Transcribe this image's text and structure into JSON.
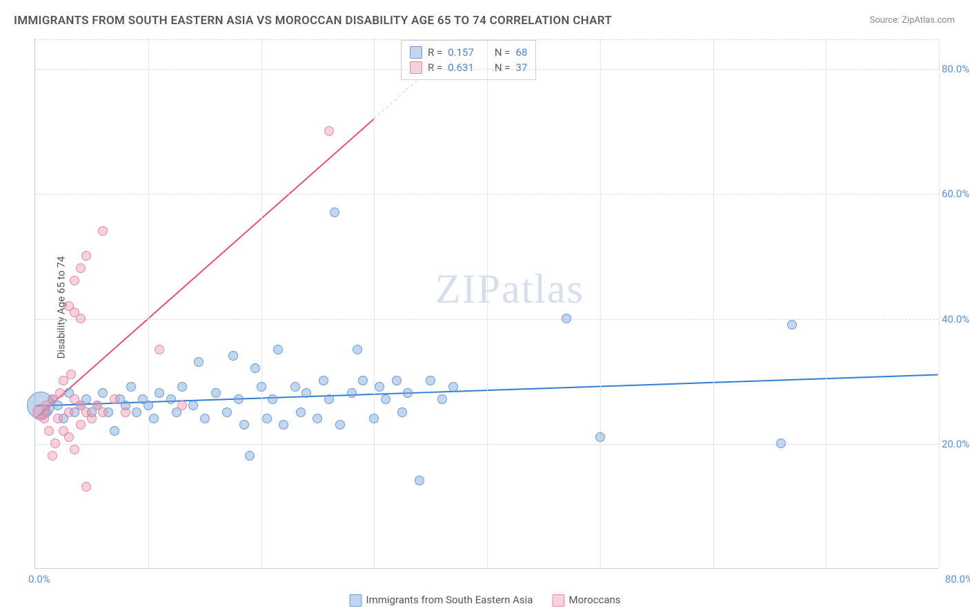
{
  "title": "IMMIGRANTS FROM SOUTH EASTERN ASIA VS MOROCCAN DISABILITY AGE 65 TO 74 CORRELATION CHART",
  "source": "Source: ZipAtlas.com",
  "ylabel": "Disability Age 65 to 74",
  "watermark": "ZIPatlas",
  "chart": {
    "type": "scatter",
    "xlim": [
      0,
      80
    ],
    "ylim": [
      0,
      85
    ],
    "xtick_origin": "0.0%",
    "xtick_max": "80.0%",
    "yticks": [
      {
        "v": 20,
        "label": "20.0%"
      },
      {
        "v": 40,
        "label": "40.0%"
      },
      {
        "v": 60,
        "label": "60.0%"
      },
      {
        "v": 80,
        "label": "80.0%"
      }
    ],
    "grid_x_positions": [
      10,
      20,
      30,
      40,
      50,
      60,
      70,
      80
    ],
    "background_color": "#ffffff",
    "grid_color": "#d8d8d8",
    "series": [
      {
        "name": "Immigrants from South Eastern Asia",
        "color_fill": "rgba(120,165,220,0.45)",
        "color_stroke": "#6a9bd4",
        "line_color": "#2f7fd6",
        "line_width": 2,
        "R": "0.157",
        "N": "68",
        "trend": {
          "x1": 0,
          "y1": 26,
          "x2": 80,
          "y2": 31
        },
        "points": [
          {
            "x": 0.5,
            "y": 26,
            "r": 20
          },
          {
            "x": 1,
            "y": 25,
            "r": 7
          },
          {
            "x": 1.5,
            "y": 27,
            "r": 7
          },
          {
            "x": 2,
            "y": 26,
            "r": 7
          },
          {
            "x": 2.5,
            "y": 24,
            "r": 7
          },
          {
            "x": 3,
            "y": 28,
            "r": 7
          },
          {
            "x": 3.5,
            "y": 25,
            "r": 7
          },
          {
            "x": 4,
            "y": 26,
            "r": 7
          },
          {
            "x": 4.5,
            "y": 27,
            "r": 7
          },
          {
            "x": 5,
            "y": 25,
            "r": 7
          },
          {
            "x": 5.5,
            "y": 26,
            "r": 7
          },
          {
            "x": 6,
            "y": 28,
            "r": 7
          },
          {
            "x": 6.5,
            "y": 25,
            "r": 7
          },
          {
            "x": 7,
            "y": 22,
            "r": 7
          },
          {
            "x": 7.5,
            "y": 27,
            "r": 7
          },
          {
            "x": 8,
            "y": 26,
            "r": 7
          },
          {
            "x": 8.5,
            "y": 29,
            "r": 7
          },
          {
            "x": 9,
            "y": 25,
            "r": 7
          },
          {
            "x": 9.5,
            "y": 27,
            "r": 7
          },
          {
            "x": 10,
            "y": 26,
            "r": 7
          },
          {
            "x": 10.5,
            "y": 24,
            "r": 7
          },
          {
            "x": 11,
            "y": 28,
            "r": 7
          },
          {
            "x": 12,
            "y": 27,
            "r": 7
          },
          {
            "x": 12.5,
            "y": 25,
            "r": 7
          },
          {
            "x": 13,
            "y": 29,
            "r": 7
          },
          {
            "x": 14,
            "y": 26,
            "r": 7
          },
          {
            "x": 14.5,
            "y": 33,
            "r": 7
          },
          {
            "x": 15,
            "y": 24,
            "r": 7
          },
          {
            "x": 16,
            "y": 28,
            "r": 7
          },
          {
            "x": 17,
            "y": 25,
            "r": 7
          },
          {
            "x": 17.5,
            "y": 34,
            "r": 7
          },
          {
            "x": 18,
            "y": 27,
            "r": 7
          },
          {
            "x": 18.5,
            "y": 23,
            "r": 7
          },
          {
            "x": 19,
            "y": 18,
            "r": 7
          },
          {
            "x": 19.5,
            "y": 32,
            "r": 7
          },
          {
            "x": 20,
            "y": 29,
            "r": 7
          },
          {
            "x": 20.5,
            "y": 24,
            "r": 7
          },
          {
            "x": 21,
            "y": 27,
            "r": 7
          },
          {
            "x": 21.5,
            "y": 35,
            "r": 7
          },
          {
            "x": 22,
            "y": 23,
            "r": 7
          },
          {
            "x": 23,
            "y": 29,
            "r": 7
          },
          {
            "x": 23.5,
            "y": 25,
            "r": 7
          },
          {
            "x": 24,
            "y": 28,
            "r": 7
          },
          {
            "x": 25,
            "y": 24,
            "r": 7
          },
          {
            "x": 25.5,
            "y": 30,
            "r": 7
          },
          {
            "x": 26,
            "y": 27,
            "r": 7
          },
          {
            "x": 26.5,
            "y": 57,
            "r": 7
          },
          {
            "x": 27,
            "y": 23,
            "r": 7
          },
          {
            "x": 28,
            "y": 28,
            "r": 7
          },
          {
            "x": 28.5,
            "y": 35,
            "r": 7
          },
          {
            "x": 29,
            "y": 30,
            "r": 7
          },
          {
            "x": 30,
            "y": 24,
            "r": 7
          },
          {
            "x": 30.5,
            "y": 29,
            "r": 7
          },
          {
            "x": 31,
            "y": 27,
            "r": 7
          },
          {
            "x": 32,
            "y": 30,
            "r": 7
          },
          {
            "x": 32.5,
            "y": 25,
            "r": 7
          },
          {
            "x": 33,
            "y": 28,
            "r": 7
          },
          {
            "x": 34,
            "y": 14,
            "r": 7
          },
          {
            "x": 35,
            "y": 30,
            "r": 7
          },
          {
            "x": 36,
            "y": 27,
            "r": 7
          },
          {
            "x": 37,
            "y": 29,
            "r": 7
          },
          {
            "x": 47,
            "y": 40,
            "r": 7
          },
          {
            "x": 50,
            "y": 21,
            "r": 7
          },
          {
            "x": 66,
            "y": 20,
            "r": 7
          },
          {
            "x": 67,
            "y": 39,
            "r": 7
          }
        ]
      },
      {
        "name": "Moroccans",
        "color_fill": "rgba(240,140,165,0.40)",
        "color_stroke": "#e589a3",
        "line_color": "#e84d78",
        "line_width": 2,
        "R": "0.631",
        "N": "37",
        "trend": {
          "x1": 0,
          "y1": 24,
          "x2": 30,
          "y2": 72
        },
        "trend_dashed_ext": {
          "x1": 30,
          "y1": 72,
          "x2": 38,
          "y2": 85
        },
        "points": [
          {
            "x": 0.5,
            "y": 25,
            "r": 12
          },
          {
            "x": 0.8,
            "y": 24,
            "r": 7
          },
          {
            "x": 1,
            "y": 26,
            "r": 7
          },
          {
            "x": 1.2,
            "y": 22,
            "r": 7
          },
          {
            "x": 1.5,
            "y": 27,
            "r": 7
          },
          {
            "x": 1.8,
            "y": 20,
            "r": 7
          },
          {
            "x": 1.5,
            "y": 18,
            "r": 7
          },
          {
            "x": 2,
            "y": 24,
            "r": 7
          },
          {
            "x": 2.2,
            "y": 28,
            "r": 7
          },
          {
            "x": 2.5,
            "y": 30,
            "r": 7
          },
          {
            "x": 2.5,
            "y": 22,
            "r": 7
          },
          {
            "x": 3,
            "y": 25,
            "r": 7
          },
          {
            "x": 3,
            "y": 21,
            "r": 7
          },
          {
            "x": 3.2,
            "y": 31,
            "r": 7
          },
          {
            "x": 3.5,
            "y": 19,
            "r": 7
          },
          {
            "x": 3.5,
            "y": 27,
            "r": 7
          },
          {
            "x": 4,
            "y": 23,
            "r": 7
          },
          {
            "x": 4,
            "y": 26,
            "r": 7
          },
          {
            "x": 4.5,
            "y": 25,
            "r": 7
          },
          {
            "x": 3,
            "y": 42,
            "r": 7
          },
          {
            "x": 3.5,
            "y": 41,
            "r": 7
          },
          {
            "x": 4,
            "y": 40,
            "r": 7
          },
          {
            "x": 3.5,
            "y": 46,
            "r": 7
          },
          {
            "x": 4,
            "y": 48,
            "r": 7
          },
          {
            "x": 4.5,
            "y": 50,
            "r": 7
          },
          {
            "x": 5,
            "y": 24,
            "r": 7
          },
          {
            "x": 5.5,
            "y": 26,
            "r": 7
          },
          {
            "x": 6,
            "y": 25,
            "r": 7
          },
          {
            "x": 6,
            "y": 54,
            "r": 7
          },
          {
            "x": 7,
            "y": 27,
            "r": 7
          },
          {
            "x": 8,
            "y": 25,
            "r": 7
          },
          {
            "x": 4.5,
            "y": 13,
            "r": 7
          },
          {
            "x": 11,
            "y": 35,
            "r": 7
          },
          {
            "x": 13,
            "y": 26,
            "r": 7
          },
          {
            "x": 26,
            "y": 70,
            "r": 7
          }
        ]
      }
    ]
  },
  "legend_bottom": [
    {
      "label": "Immigrants from South Eastern Asia",
      "fill": "rgba(120,165,220,0.45)",
      "stroke": "#6a9bd4"
    },
    {
      "label": "Moroccans",
      "fill": "rgba(240,140,165,0.40)",
      "stroke": "#e589a3"
    }
  ]
}
